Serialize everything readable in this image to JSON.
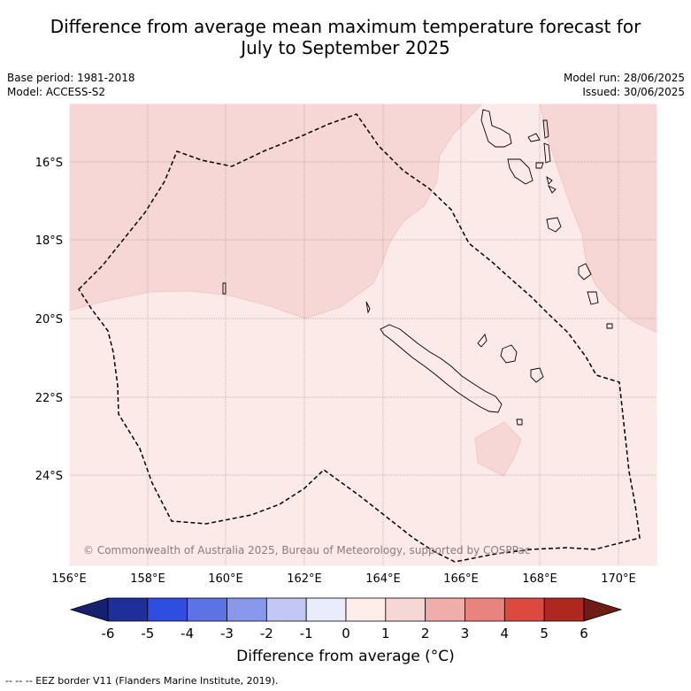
{
  "title_line1": "Difference from average mean maximum temperature forecast for",
  "title_line2": "July to September 2025",
  "meta": {
    "base_period": "Base period: 1981-2018",
    "model": "Model: ACCESS-S2",
    "model_run": "Model run: 28/06/2025",
    "issued": "Issued: 30/06/2025"
  },
  "map": {
    "lon_labels": [
      "156°E",
      "158°E",
      "160°E",
      "162°E",
      "164°E",
      "166°E",
      "168°E",
      "170°E"
    ],
    "lat_labels": [
      "16°S",
      "18°S",
      "20°S",
      "22°S",
      "24°S"
    ],
    "copyright": "© Commonwealth of Australia 2025, Bureau of Meteorology, supported by COSPPac",
    "colors": {
      "anomaly_0_1": "#fceae8",
      "anomaly_1_2": "#f6d7d5",
      "coastline": "#000000",
      "eez_border": "#000000"
    }
  },
  "colorbar": {
    "ticks": [
      "-6",
      "-5",
      "-4",
      "-3",
      "-2",
      "-1",
      "0",
      "1",
      "2",
      "3",
      "4",
      "5",
      "6"
    ],
    "colors": [
      "#1f2f9a",
      "#2f4ee0",
      "#5b73e4",
      "#8898ea",
      "#c1c8f4",
      "#e9ecfa",
      "#fdeeea",
      "#f7d7d4",
      "#f0aeaa",
      "#e8847d",
      "#dc4a3f",
      "#ae2820"
    ],
    "low_extend_color": "#16206e",
    "high_extend_color": "#6e1c15",
    "label": "Difference from average (°C)"
  },
  "footer": "--  --  -- EEZ border V11 (Flanders Marine Institute, 2019)."
}
